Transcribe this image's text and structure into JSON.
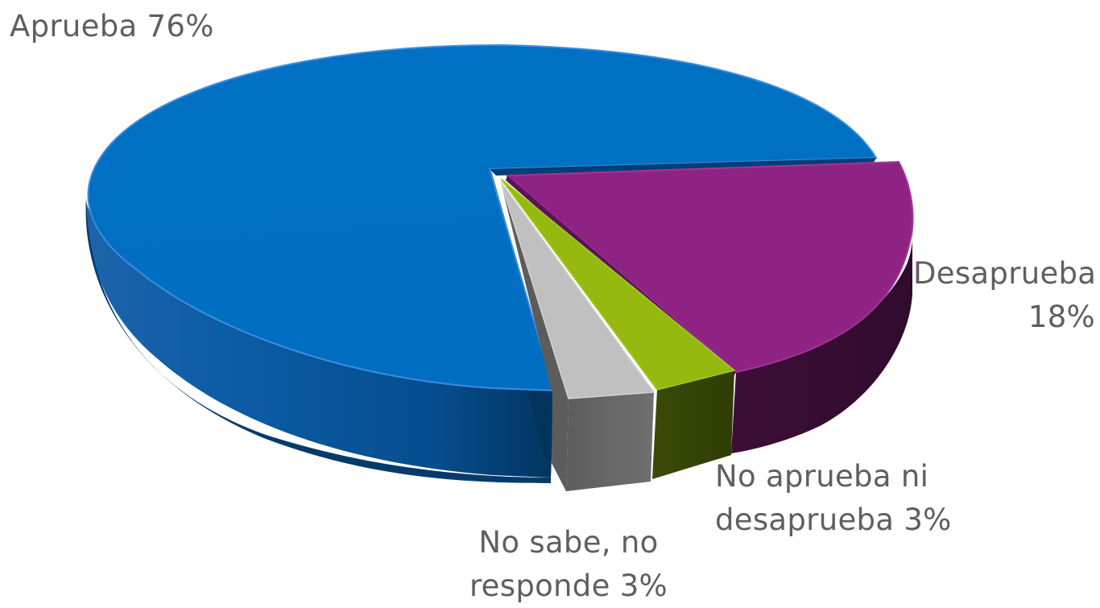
{
  "chart_data": {
    "type": "pie",
    "style": "3d-exploded",
    "slices": [
      {
        "category": "Aprueba",
        "value": 76,
        "label_lines": [
          "Aprueba 76%"
        ],
        "color": "#0070c0"
      },
      {
        "category": "Desaprueba",
        "value": 18,
        "label_lines": [
          "Desaprueba",
          "18%"
        ],
        "color": "#8e2383"
      },
      {
        "category": "No aprueba ni desaprueba",
        "value": 3,
        "label_lines": [
          "No aprueba ni",
          "desaprueba 3%"
        ],
        "color": "#95b90f"
      },
      {
        "category": "No sabe, no responde",
        "value": 3,
        "label_lines": [
          "No sabe, no",
          "responde 3%"
        ],
        "color": "#c0c0c0"
      }
    ],
    "legend": "none"
  }
}
